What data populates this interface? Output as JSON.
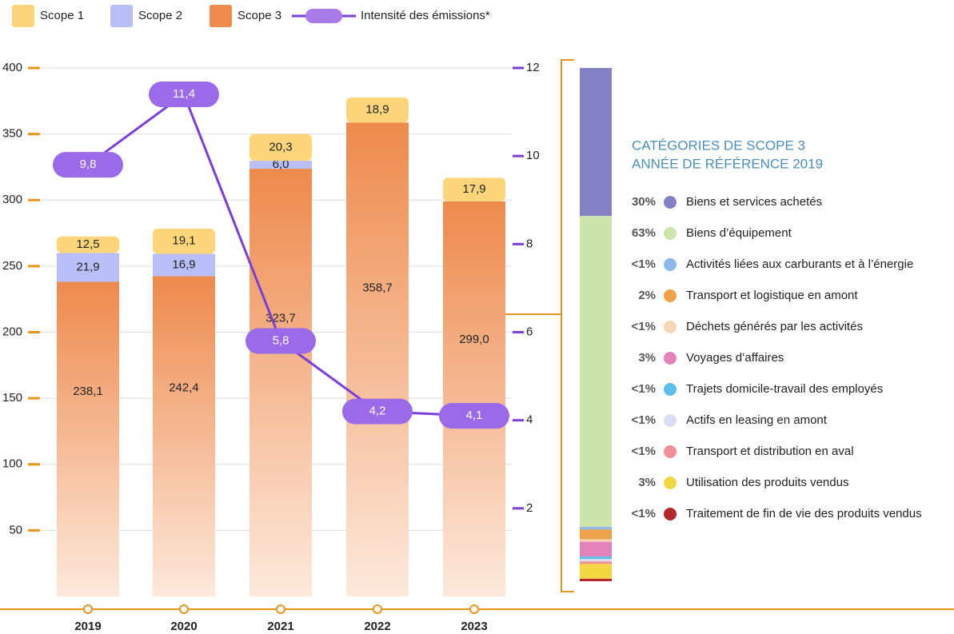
{
  "chart_data": [
    {
      "type": "bar",
      "stacked": true,
      "categories": [
        "2019",
        "2020",
        "2021",
        "2022",
        "2023"
      ],
      "series": [
        {
          "name": "Scope 1",
          "color": "#fdd67c",
          "values": [
            12.5,
            19.1,
            20.3,
            18.9,
            17.9
          ],
          "value_labels": [
            "12,5",
            "19,1",
            "20,3",
            "18,9",
            "17,9"
          ]
        },
        {
          "name": "Scope 2",
          "color": "#b8bff6",
          "values": [
            21.9,
            16.9,
            6.0,
            null,
            null
          ],
          "value_labels": [
            "21,9",
            "16,9",
            "6,0",
            null,
            null
          ]
        },
        {
          "name": "Scope 3",
          "color": "#ee8a4c",
          "values": [
            238.1,
            242.4,
            323.7,
            358.7,
            299.0
          ],
          "value_labels": [
            "238,1",
            "242,4",
            "323,7",
            "358,7",
            "299,0"
          ]
        },
        {
          "name": "Intensité des émissions*",
          "type": "line",
          "axis": "y2",
          "color": "#7a3fd8",
          "values": [
            9.8,
            11.4,
            5.8,
            4.2,
            4.1
          ],
          "value_labels": [
            "9,8",
            "11,4",
            "5,8",
            "4,2",
            "4,1"
          ]
        }
      ],
      "ylim": [
        0,
        400
      ],
      "yticks": [
        50,
        100,
        150,
        200,
        250,
        300,
        350,
        400
      ],
      "y2lim": [
        0,
        12
      ],
      "y2ticks": [
        2,
        4,
        6,
        8,
        10,
        12
      ],
      "grid": true
    },
    {
      "type": "bar",
      "stacked": true,
      "title": "CATÉGORIES DE SCOPE 3",
      "subtitle": "ANNÉE DE RÉFÉRENCE 2019",
      "categories": [
        "Biens et services achetés",
        "Biens d’équipement",
        "Activités liées aux carburants et à l’énergie",
        "Transport et logistique en amont",
        "Déchets générés par les activités",
        "Voyages d’affaires",
        "Trajets domicile-travail des employés",
        "Actifs en leasing en amont",
        "Transport et distribution en aval",
        "Utilisation des produits vendus",
        "Traitement de fin de vie des produits vendus"
      ],
      "values": [
        30,
        63,
        0.5,
        2,
        0.5,
        3,
        0.5,
        0.5,
        0.5,
        3,
        0.5
      ],
      "value_labels": [
        "30%",
        "63%",
        "<1%",
        "2%",
        "<1%",
        "3%",
        "<1%",
        "<1%",
        "<1%",
        "3%",
        "<1%"
      ],
      "colors": [
        "#8581c4",
        "#cde4ad",
        "#8cb9e8",
        "#eca24a",
        "#f7d6b8",
        "#e283bb",
        "#5dbfe9",
        "#dedbf6",
        "#ef8f98",
        "#f2d743",
        "#b3282d"
      ]
    }
  ]
}
